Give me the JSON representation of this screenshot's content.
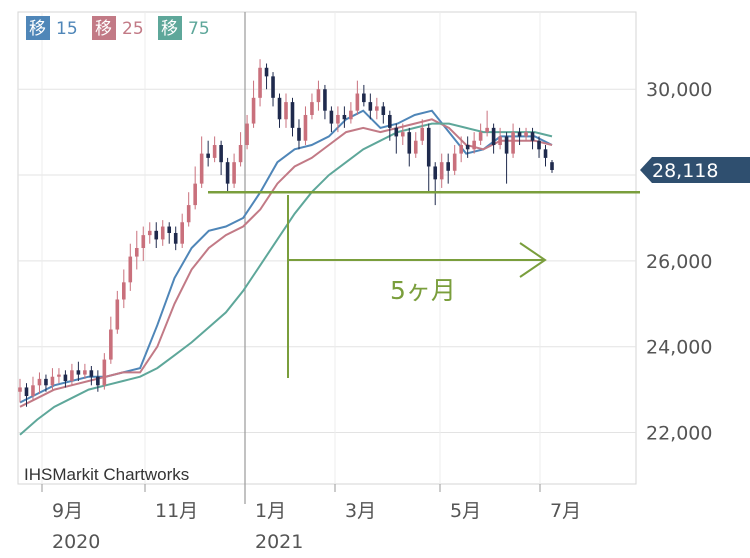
{
  "chart_data": {
    "type": "candlestick",
    "watermark": "IHSMarkit Chartworks",
    "y_axis": {
      "ticks": [
        "30,000",
        "26,000",
        "24,000",
        "22,000"
      ],
      "tick_values": [
        30000,
        26000,
        24000,
        22000
      ],
      "ylim": [
        20800,
        31800
      ],
      "side": "right"
    },
    "x_axis": {
      "ticks": [
        {
          "label": "9月",
          "year": "2020"
        },
        {
          "label": "11月",
          "year": ""
        },
        {
          "label": "1月",
          "year": "2021"
        },
        {
          "label": "3月",
          "year": ""
        },
        {
          "label": "5月",
          "year": ""
        },
        {
          "label": "7月",
          "year": ""
        }
      ]
    },
    "legend": [
      {
        "label": "移",
        "value": "15",
        "color": "#4f86b8"
      },
      {
        "label": "移",
        "value": "25",
        "color": "#c27a86"
      },
      {
        "label": "移",
        "value": "75",
        "color": "#5ea79a"
      }
    ],
    "last_price_label": "28,118",
    "last_price": 28118,
    "annotation": {
      "text": "5ヶ月",
      "support_level": 27600,
      "color": "#7a9e3c"
    },
    "series": [
      {
        "name": "15",
        "values": [
          22700,
          22900,
          23100,
          23200,
          23300,
          23300,
          23400,
          23500,
          24500,
          25600,
          26300,
          26700,
          26800,
          27000,
          27600,
          28300,
          28600,
          28700,
          28900,
          29300,
          29500,
          29100,
          29200,
          29400,
          29500,
          29000,
          28500,
          28600,
          28900,
          28900,
          28900,
          28700
        ]
      },
      {
        "name": "25",
        "values": [
          22600,
          22800,
          23000,
          23100,
          23200,
          23300,
          23400,
          23400,
          24000,
          25000,
          25800,
          26300,
          26600,
          26800,
          27200,
          27800,
          28200,
          28400,
          28700,
          29000,
          29100,
          29000,
          29100,
          29200,
          29300,
          29100,
          28700,
          28600,
          28800,
          28800,
          28800,
          28700
        ]
      },
      {
        "name": "75",
        "values": [
          21950,
          22300,
          22600,
          22800,
          23000,
          23100,
          23200,
          23300,
          23500,
          23800,
          24100,
          24450,
          24800,
          25300,
          25900,
          26500,
          27100,
          27600,
          28000,
          28300,
          28600,
          28800,
          29000,
          29100,
          29200,
          29200,
          29100,
          29000,
          29000,
          29000,
          29000,
          28900
        ]
      }
    ],
    "candles": [
      {
        "o": 22950,
        "c": 23050,
        "h": 23250,
        "l": 22700
      },
      {
        "o": 23050,
        "c": 22850,
        "h": 23150,
        "l": 22600
      },
      {
        "o": 22850,
        "c": 23100,
        "h": 23300,
        "l": 22750
      },
      {
        "o": 23100,
        "c": 23250,
        "h": 23400,
        "l": 22900
      },
      {
        "o": 23250,
        "c": 23100,
        "h": 23350,
        "l": 22950
      },
      {
        "o": 23100,
        "c": 23300,
        "h": 23500,
        "l": 23000
      },
      {
        "o": 23300,
        "c": 23350,
        "h": 23500,
        "l": 23150
      },
      {
        "o": 23350,
        "c": 23200,
        "h": 23450,
        "l": 23050
      },
      {
        "o": 23200,
        "c": 23450,
        "h": 23600,
        "l": 23100
      },
      {
        "o": 23450,
        "c": 23350,
        "h": 23650,
        "l": 23200
      },
      {
        "o": 23350,
        "c": 23450,
        "h": 23600,
        "l": 23250
      },
      {
        "o": 23450,
        "c": 23300,
        "h": 23550,
        "l": 23100
      },
      {
        "o": 23300,
        "c": 23100,
        "h": 23450,
        "l": 22950
      },
      {
        "o": 23100,
        "c": 23700,
        "h": 23850,
        "l": 23000
      },
      {
        "o": 23700,
        "c": 24400,
        "h": 24700,
        "l": 23600
      },
      {
        "o": 24400,
        "c": 25100,
        "h": 25300,
        "l": 24300
      },
      {
        "o": 25100,
        "c": 25500,
        "h": 25800,
        "l": 24900
      },
      {
        "o": 25500,
        "c": 26100,
        "h": 26400,
        "l": 25300
      },
      {
        "o": 26100,
        "c": 26300,
        "h": 26700,
        "l": 25800
      },
      {
        "o": 26300,
        "c": 26600,
        "h": 26800,
        "l": 26000
      },
      {
        "o": 26600,
        "c": 26700,
        "h": 26900,
        "l": 26400
      },
      {
        "o": 26700,
        "c": 26500,
        "h": 26900,
        "l": 26300
      },
      {
        "o": 26500,
        "c": 26800,
        "h": 26950,
        "l": 26350
      },
      {
        "o": 26800,
        "c": 26650,
        "h": 26900,
        "l": 26400
      },
      {
        "o": 26650,
        "c": 26400,
        "h": 26800,
        "l": 26250
      },
      {
        "o": 26400,
        "c": 26900,
        "h": 27100,
        "l": 26300
      },
      {
        "o": 26900,
        "c": 27300,
        "h": 27600,
        "l": 26800
      },
      {
        "o": 27300,
        "c": 27800,
        "h": 28200,
        "l": 27200
      },
      {
        "o": 27800,
        "c": 28500,
        "h": 28900,
        "l": 27700
      },
      {
        "o": 28500,
        "c": 28400,
        "h": 28800,
        "l": 28200
      },
      {
        "o": 28400,
        "c": 28700,
        "h": 28900,
        "l": 28300
      },
      {
        "o": 28700,
        "c": 28300,
        "h": 28800,
        "l": 28000
      },
      {
        "o": 28300,
        "c": 27800,
        "h": 28400,
        "l": 27600
      },
      {
        "o": 27800,
        "c": 28300,
        "h": 28500,
        "l": 27700
      },
      {
        "o": 28300,
        "c": 28700,
        "h": 29000,
        "l": 28200
      },
      {
        "o": 28700,
        "c": 29200,
        "h": 29400,
        "l": 28600
      },
      {
        "o": 29200,
        "c": 29800,
        "h": 30200,
        "l": 29100
      },
      {
        "o": 29800,
        "c": 30500,
        "h": 30700,
        "l": 29600
      },
      {
        "o": 30500,
        "c": 30300,
        "h": 30600,
        "l": 30000
      },
      {
        "o": 30300,
        "c": 29800,
        "h": 30400,
        "l": 29600
      },
      {
        "o": 29800,
        "c": 29300,
        "h": 29900,
        "l": 29100
      },
      {
        "o": 29300,
        "c": 29700,
        "h": 29900,
        "l": 29100
      },
      {
        "o": 29700,
        "c": 29100,
        "h": 29800,
        "l": 28900
      },
      {
        "o": 29100,
        "c": 28800,
        "h": 29300,
        "l": 28600
      },
      {
        "o": 28800,
        "c": 29400,
        "h": 29600,
        "l": 28700
      },
      {
        "o": 29400,
        "c": 29700,
        "h": 29900,
        "l": 29300
      },
      {
        "o": 29700,
        "c": 30000,
        "h": 30200,
        "l": 29500
      },
      {
        "o": 30000,
        "c": 29500,
        "h": 30100,
        "l": 29300
      },
      {
        "o": 29500,
        "c": 29200,
        "h": 29600,
        "l": 29000
      },
      {
        "o": 29200,
        "c": 29400,
        "h": 29600,
        "l": 29000
      },
      {
        "o": 29400,
        "c": 29300,
        "h": 29600,
        "l": 29100
      },
      {
        "o": 29300,
        "c": 29500,
        "h": 29700,
        "l": 29200
      },
      {
        "o": 29500,
        "c": 29900,
        "h": 30200,
        "l": 29400
      },
      {
        "o": 29900,
        "c": 29700,
        "h": 30100,
        "l": 29600
      },
      {
        "o": 29700,
        "c": 29500,
        "h": 29900,
        "l": 29300
      },
      {
        "o": 29500,
        "c": 29600,
        "h": 29800,
        "l": 29300
      },
      {
        "o": 29600,
        "c": 29400,
        "h": 29700,
        "l": 29200
      },
      {
        "o": 29400,
        "c": 29100,
        "h": 29500,
        "l": 28800
      },
      {
        "o": 29100,
        "c": 28900,
        "h": 29200,
        "l": 28500
      },
      {
        "o": 28900,
        "c": 29000,
        "h": 29200,
        "l": 28700
      },
      {
        "o": 29000,
        "c": 28500,
        "h": 29100,
        "l": 28200
      },
      {
        "o": 28500,
        "c": 28800,
        "h": 29000,
        "l": 28400
      },
      {
        "o": 28800,
        "c": 29100,
        "h": 29300,
        "l": 28700
      },
      {
        "o": 29100,
        "c": 28200,
        "h": 29200,
        "l": 27600
      },
      {
        "o": 28200,
        "c": 27900,
        "h": 28300,
        "l": 27300
      },
      {
        "o": 27900,
        "c": 28300,
        "h": 28500,
        "l": 27700
      },
      {
        "o": 28300,
        "c": 28100,
        "h": 28500,
        "l": 27800
      },
      {
        "o": 28100,
        "c": 28500,
        "h": 28700,
        "l": 28000
      },
      {
        "o": 28500,
        "c": 28700,
        "h": 28900,
        "l": 28300
      },
      {
        "o": 28700,
        "c": 28600,
        "h": 28900,
        "l": 28400
      },
      {
        "o": 28600,
        "c": 28800,
        "h": 29000,
        "l": 28500
      },
      {
        "o": 28800,
        "c": 29000,
        "h": 29200,
        "l": 28700
      },
      {
        "o": 29000,
        "c": 29100,
        "h": 29500,
        "l": 28900
      },
      {
        "o": 29100,
        "c": 28700,
        "h": 29200,
        "l": 28500
      },
      {
        "o": 28700,
        "c": 28900,
        "h": 29100,
        "l": 28600
      },
      {
        "o": 28900,
        "c": 28500,
        "h": 29000,
        "l": 27800
      },
      {
        "o": 28500,
        "c": 29000,
        "h": 29200,
        "l": 28400
      },
      {
        "o": 29000,
        "c": 28900,
        "h": 29100,
        "l": 28700
      },
      {
        "o": 28900,
        "c": 29000,
        "h": 29100,
        "l": 28800
      },
      {
        "o": 29000,
        "c": 28800,
        "h": 29100,
        "l": 28600
      },
      {
        "o": 28800,
        "c": 28600,
        "h": 28900,
        "l": 28400
      },
      {
        "o": 28600,
        "c": 28400,
        "h": 28700,
        "l": 28200
      },
      {
        "o": 28300,
        "c": 28118,
        "h": 28350,
        "l": 28050
      }
    ]
  }
}
